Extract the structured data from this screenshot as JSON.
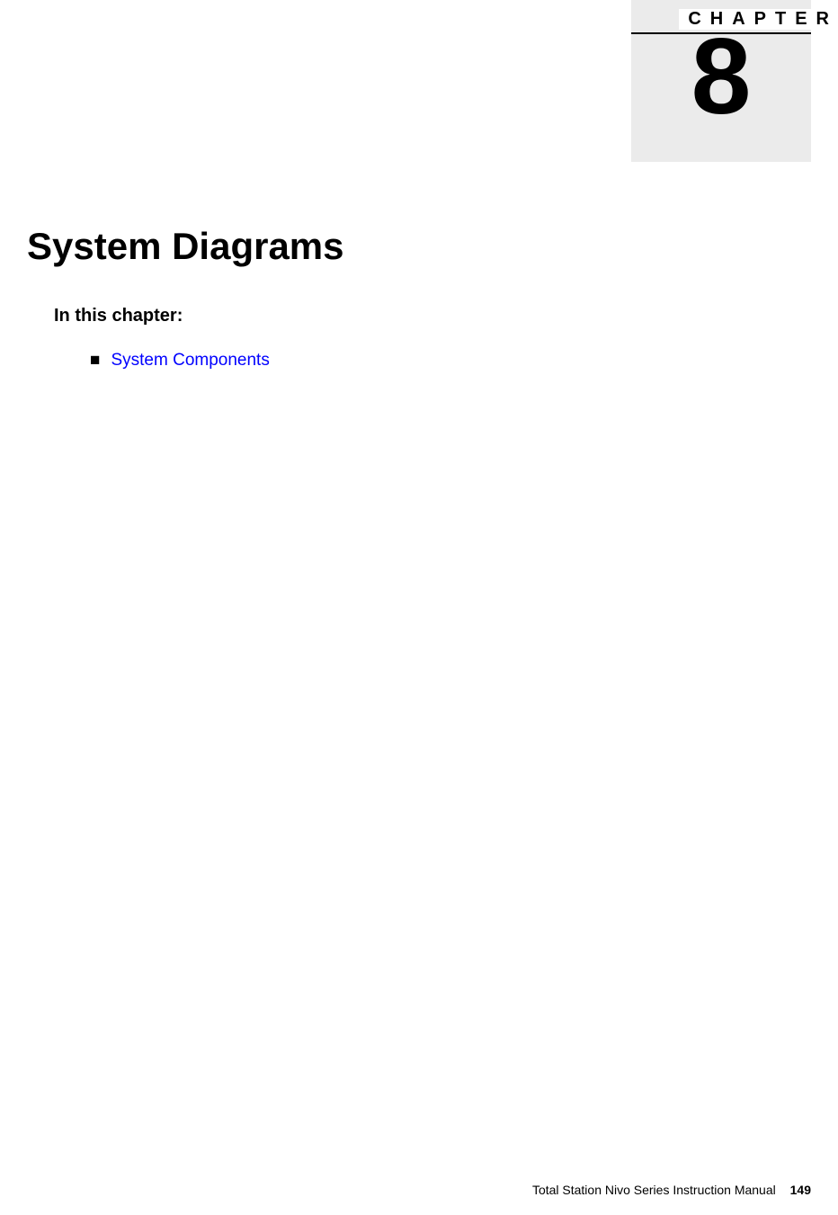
{
  "chapter": {
    "label": "CHAPTER",
    "number": "8",
    "title": "System Diagrams",
    "in_this_chapter": "In this chapter:",
    "items": [
      {
        "label": "System Components"
      }
    ]
  },
  "footer": {
    "manual_title": "Total Station Nivo Series Instruction Manual",
    "page_number": "149"
  },
  "colors": {
    "background": "#ffffff",
    "chapter_box": "#ebebeb",
    "text": "#000000",
    "link": "#0000ff"
  },
  "typography": {
    "chapter_label_fontsize": 20,
    "chapter_number_fontsize": 120,
    "chapter_title_fontsize": 42,
    "section_heading_fontsize": 20,
    "body_fontsize": 19,
    "footer_fontsize": 14
  }
}
